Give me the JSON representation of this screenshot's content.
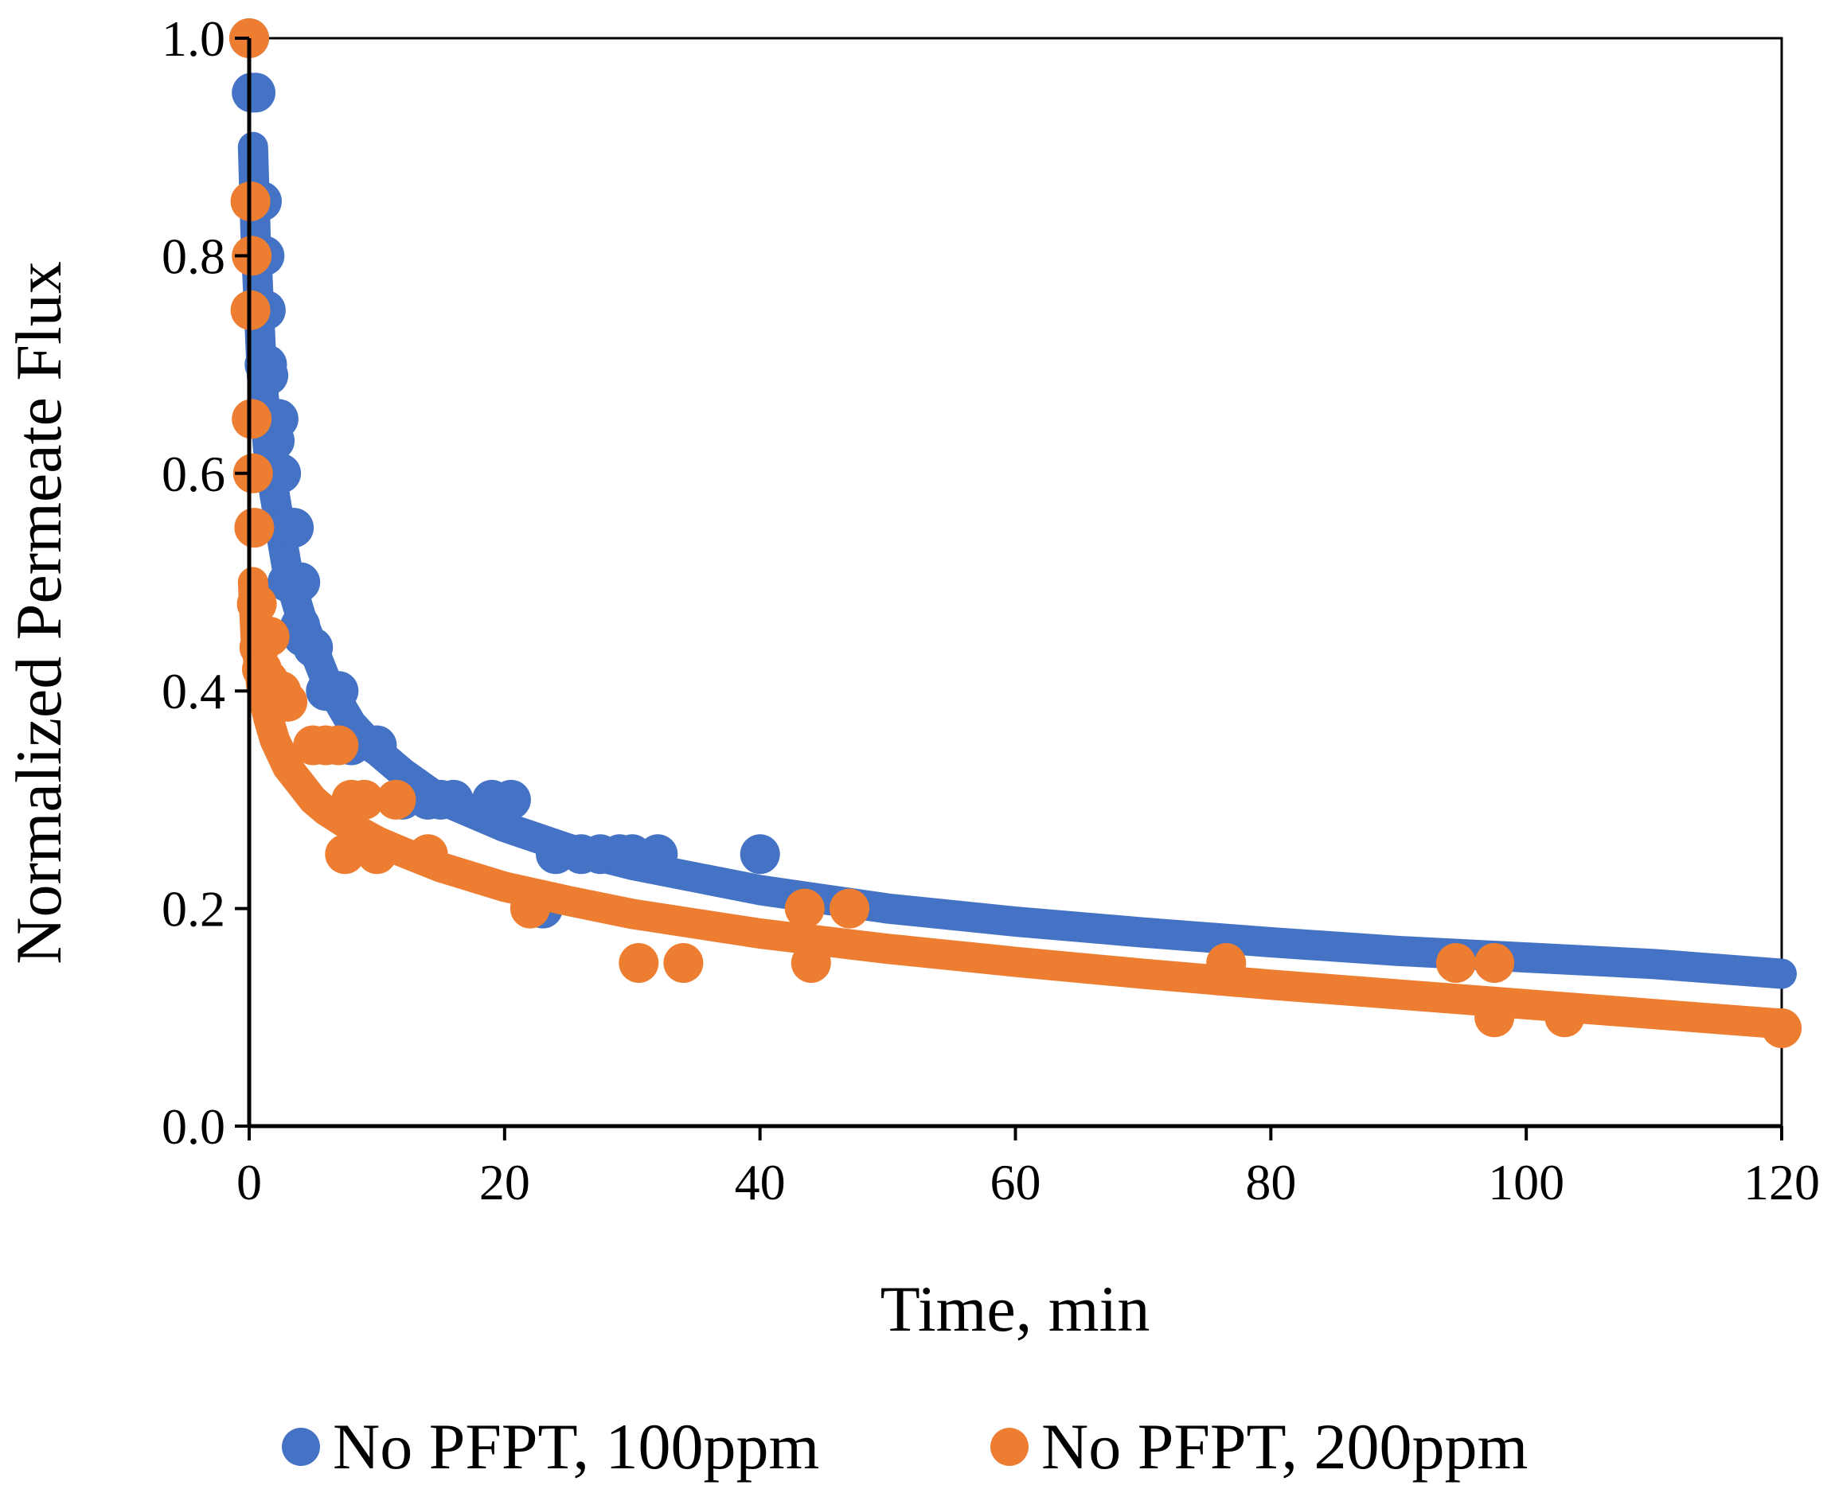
{
  "chart_data": {
    "type": "scatter",
    "xlabel": "Time, min",
    "ylabel": "Normalized Permeate Flux",
    "xlim": [
      0,
      120
    ],
    "ylim": [
      0.0,
      1.0
    ],
    "x_ticks": [
      0,
      20,
      40,
      60,
      80,
      100,
      120
    ],
    "y_ticks": [
      0.0,
      0.2,
      0.4,
      0.6,
      0.8,
      1.0
    ],
    "x_tick_labels": [
      "0",
      "20",
      "40",
      "60",
      "80",
      "100",
      "120"
    ],
    "y_tick_labels": [
      "0.0",
      "0.2",
      "0.4",
      "0.6",
      "0.8",
      "1.0"
    ],
    "grid": false,
    "legend": "bottom",
    "series": [
      {
        "name": "No PFPT, 100ppm",
        "color": "#4472C4",
        "points": [
          [
            0.0,
            1.0
          ],
          [
            0.2,
            0.95
          ],
          [
            0.5,
            0.95
          ],
          [
            0.8,
            0.85
          ],
          [
            1.0,
            0.85
          ],
          [
            1.2,
            0.8
          ],
          [
            1.3,
            0.75
          ],
          [
            1.2,
            0.7
          ],
          [
            1.4,
            0.7
          ],
          [
            1.5,
            0.69
          ],
          [
            1.6,
            0.65
          ],
          [
            2.0,
            0.63
          ],
          [
            2.3,
            0.65
          ],
          [
            2.5,
            0.6
          ],
          [
            2.8,
            0.55
          ],
          [
            3.2,
            0.55
          ],
          [
            3.5,
            0.55
          ],
          [
            3.0,
            0.5
          ],
          [
            4.0,
            0.5
          ],
          [
            4.2,
            0.45
          ],
          [
            4.0,
            0.46
          ],
          [
            5.0,
            0.44
          ],
          [
            6.0,
            0.4
          ],
          [
            7.0,
            0.4
          ],
          [
            8.0,
            0.35
          ],
          [
            10.0,
            0.35
          ],
          [
            12.0,
            0.3
          ],
          [
            14.0,
            0.3
          ],
          [
            15.0,
            0.3
          ],
          [
            16.0,
            0.3
          ],
          [
            19.0,
            0.3
          ],
          [
            20.5,
            0.3
          ],
          [
            24.0,
            0.25
          ],
          [
            26.0,
            0.25
          ],
          [
            27.5,
            0.25
          ],
          [
            29.0,
            0.25
          ],
          [
            30.0,
            0.25
          ],
          [
            32.0,
            0.25
          ],
          [
            40.0,
            0.25
          ],
          [
            23.0,
            0.2
          ]
        ],
        "fit": [
          [
            0.3,
            0.9
          ],
          [
            0.5,
            0.82
          ],
          [
            1.0,
            0.69
          ],
          [
            1.5,
            0.62
          ],
          [
            2.0,
            0.58
          ],
          [
            3.0,
            0.51
          ],
          [
            4.0,
            0.47
          ],
          [
            5.0,
            0.44
          ],
          [
            6.0,
            0.41
          ],
          [
            8.0,
            0.37
          ],
          [
            10.0,
            0.345
          ],
          [
            12.0,
            0.325
          ],
          [
            15.0,
            0.3
          ],
          [
            20.0,
            0.275
          ],
          [
            25.0,
            0.255
          ],
          [
            30.0,
            0.24
          ],
          [
            40.0,
            0.217
          ],
          [
            50.0,
            0.2
          ],
          [
            60.0,
            0.188
          ],
          [
            70.0,
            0.178
          ],
          [
            80.0,
            0.169
          ],
          [
            90.0,
            0.161
          ],
          [
            100.0,
            0.155
          ],
          [
            110.0,
            0.149
          ],
          [
            120.0,
            0.14
          ]
        ]
      },
      {
        "name": "No PFPT, 200ppm",
        "color": "#ED7D31",
        "points": [
          [
            0.0,
            1.0
          ],
          [
            0.1,
            0.85
          ],
          [
            0.2,
            0.8
          ],
          [
            0.1,
            0.75
          ],
          [
            0.2,
            0.65
          ],
          [
            0.3,
            0.6
          ],
          [
            0.4,
            0.55
          ],
          [
            0.6,
            0.48
          ],
          [
            0.8,
            0.44
          ],
          [
            1.2,
            0.45
          ],
          [
            1.6,
            0.45
          ],
          [
            1.0,
            0.42
          ],
          [
            1.5,
            0.41
          ],
          [
            2.5,
            0.4
          ],
          [
            3.0,
            0.39
          ],
          [
            5.0,
            0.35
          ],
          [
            6.0,
            0.35
          ],
          [
            7.0,
            0.35
          ],
          [
            7.5,
            0.25
          ],
          [
            8.0,
            0.3
          ],
          [
            9.0,
            0.3
          ],
          [
            10.0,
            0.25
          ],
          [
            11.5,
            0.3
          ],
          [
            14.0,
            0.25
          ],
          [
            22.0,
            0.2
          ],
          [
            30.5,
            0.15
          ],
          [
            34.0,
            0.15
          ],
          [
            43.5,
            0.2
          ],
          [
            44.0,
            0.15
          ],
          [
            47.0,
            0.2
          ],
          [
            76.5,
            0.15
          ],
          [
            94.5,
            0.15
          ],
          [
            97.5,
            0.15
          ],
          [
            97.5,
            0.1
          ],
          [
            103.0,
            0.1
          ],
          [
            120.0,
            0.09
          ]
        ],
        "fit": [
          [
            0.3,
            0.5
          ],
          [
            0.5,
            0.45
          ],
          [
            1.0,
            0.4
          ],
          [
            1.5,
            0.375
          ],
          [
            2.0,
            0.355
          ],
          [
            3.0,
            0.33
          ],
          [
            4.0,
            0.315
          ],
          [
            5.0,
            0.3
          ],
          [
            6.0,
            0.29
          ],
          [
            8.0,
            0.275
          ],
          [
            10.0,
            0.262
          ],
          [
            12.0,
            0.252
          ],
          [
            15.0,
            0.238
          ],
          [
            20.0,
            0.22
          ],
          [
            25.0,
            0.207
          ],
          [
            30.0,
            0.195
          ],
          [
            40.0,
            0.177
          ],
          [
            50.0,
            0.163
          ],
          [
            60.0,
            0.151
          ],
          [
            70.0,
            0.14
          ],
          [
            80.0,
            0.13
          ],
          [
            90.0,
            0.121
          ],
          [
            100.0,
            0.112
          ],
          [
            110.0,
            0.103
          ],
          [
            120.0,
            0.094
          ]
        ]
      }
    ]
  }
}
